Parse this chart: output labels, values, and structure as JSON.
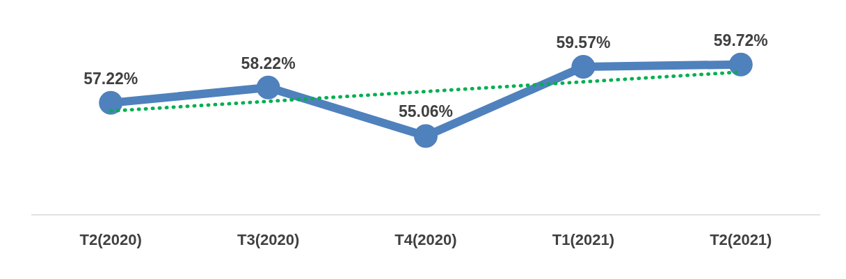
{
  "chart_data": {
    "type": "line",
    "categories": [
      "T2(2020)",
      "T3(2020)",
      "T4(2020)",
      "T1(2021)",
      "T2(2021)"
    ],
    "tick_labels": "x",
    "grid": false,
    "legend": false,
    "series": [
      {
        "color": "#4f81bd",
        "values": [
          57.22,
          58.22,
          55.06,
          59.57,
          59.72
        ],
        "value_labels": [
          "57.22%",
          "58.22%",
          "55.06%",
          "59.57%",
          "59.72%"
        ],
        "marker": "circle",
        "line_style": "solid"
      },
      {
        "color": "#00b050",
        "values": [
          56.69,
          57.32,
          57.96,
          58.59,
          59.23
        ],
        "marker": "none",
        "line_style": "dotted"
      }
    ]
  }
}
